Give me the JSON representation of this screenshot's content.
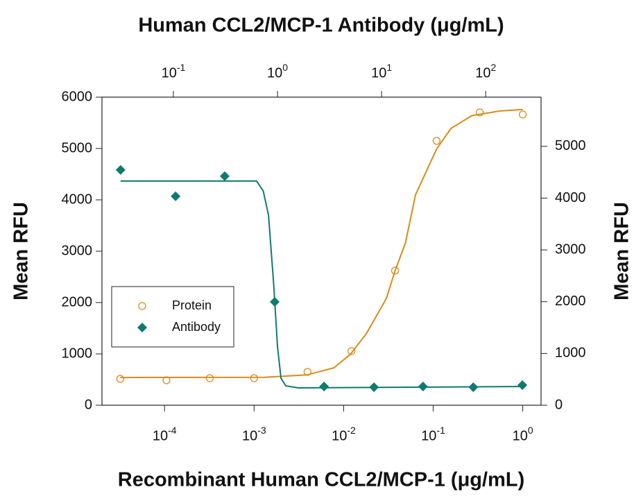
{
  "chart_data": {
    "type": "scatter",
    "x_label": "Recombinant Human CCL2/MCP-1 (μg/mL)",
    "x2_label": "Human CCL2/MCP-1 Antibody (μg/mL)",
    "y_label": "Mean RFU",
    "y2_label": "Mean RFU",
    "xscale": "log",
    "x2scale": "log",
    "xlim": [
      2e-05,
      1.6
    ],
    "xticks": [
      {
        "value": 0.0001,
        "label": "10",
        "exponent": "-4"
      },
      {
        "value": 0.001,
        "label": "10",
        "exponent": "-3"
      },
      {
        "value": 0.01,
        "label": "10",
        "exponent": "-2"
      },
      {
        "value": 0.1,
        "label": "10",
        "exponent": "-1"
      },
      {
        "value": 1,
        "label": "10",
        "exponent": "0"
      }
    ],
    "x2lim": [
      0.0206,
      340
    ],
    "x2ticks": [
      {
        "value": 0.1,
        "label": "10",
        "exponent": "-1"
      },
      {
        "value": 1,
        "label": "10",
        "exponent": "0"
      },
      {
        "value": 10,
        "label": "10",
        "exponent": "1"
      },
      {
        "value": 100,
        "label": "10",
        "exponent": "2"
      }
    ],
    "ylim": [
      0,
      6000
    ],
    "yticks": [
      0,
      1000,
      2000,
      3000,
      4000,
      5000,
      6000
    ],
    "y2lim": [
      0,
      5950
    ],
    "y2ticks": [
      0,
      1000,
      2000,
      3000,
      4000,
      5000
    ],
    "legend": "lower left",
    "series": [
      {
        "name": "Protein",
        "color": "#d98b1a",
        "marker": "open-circle",
        "x": [
          3.2e-05,
          0.000105,
          0.00032,
          0.001,
          0.00395,
          0.0122,
          0.0375,
          0.109,
          0.331,
          1.0
        ],
        "values": [
          513,
          486,
          527,
          527,
          649,
          1054,
          2622,
          5149,
          5703,
          5662
        ],
        "fit_x": [
          3.2e-05,
          0.0013,
          0.0039,
          0.0078,
          0.012,
          0.018,
          0.03,
          0.0375,
          0.049,
          0.0635,
          0.109,
          0.158,
          0.27,
          0.55,
          1.0
        ],
        "fit_values": [
          540,
          545,
          590,
          730,
          1000,
          1400,
          2080,
          2620,
          3160,
          4100,
          4990,
          5390,
          5640,
          5730,
          5760
        ]
      },
      {
        "name": "Antibody",
        "color": "#0f7a6e",
        "marker": "diamond",
        "axis": "y2",
        "xaxis": "x2",
        "x": [
          0.0311,
          0.105,
          0.311,
          0.94,
          2.8,
          8.45,
          25,
          76,
          225
        ],
        "values": [
          4544,
          4035,
          4424,
          1997,
          362,
          349,
          362,
          349,
          389
        ],
        "fit_x": [
          0.0311,
          0.63,
          0.73,
          0.82,
          0.92,
          1.0,
          1.08,
          1.2,
          1.58,
          225
        ],
        "fit_values": [
          4330,
          4330,
          4140,
          3670,
          2330,
          1126,
          523,
          375,
          335,
          362
        ]
      }
    ]
  }
}
